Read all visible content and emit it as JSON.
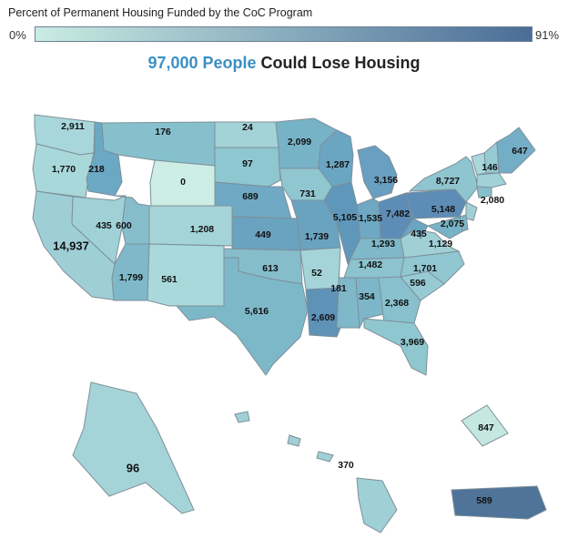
{
  "legend": {
    "title": "Percent of Permanent Housing Funded by the CoC Program",
    "min_label": "0%",
    "max_label": "91%",
    "color_low": "#c9ece3",
    "color_high": "#4a6d97"
  },
  "headline": {
    "highlight": "97,000 People",
    "rest": " Could Lose Housing"
  },
  "states": [
    {
      "id": "WA",
      "label": "2,911",
      "color": "#a7d7da"
    },
    {
      "id": "OR",
      "label": "1,770",
      "color": "#a9d8da"
    },
    {
      "id": "CA",
      "label": "14,937",
      "color": "#9fcfd6"
    },
    {
      "id": "ID",
      "label": "218",
      "color": "#6aa8c3"
    },
    {
      "id": "NV",
      "label": "435",
      "color": "#9fd1d6"
    },
    {
      "id": "UT",
      "label": "600",
      "color": "#86bdcb"
    },
    {
      "id": "AZ",
      "label": "1,799",
      "color": "#7fb9c9"
    },
    {
      "id": "MT",
      "label": "176",
      "color": "#86c0cd"
    },
    {
      "id": "WY",
      "label": "0",
      "color": "#cdeee5"
    },
    {
      "id": "CO",
      "label": "1,208",
      "color": "#a4d4d8"
    },
    {
      "id": "NM",
      "label": "561",
      "color": "#a9d9da"
    },
    {
      "id": "ND",
      "label": "24",
      "color": "#a3d3d7"
    },
    {
      "id": "SD",
      "label": "97",
      "color": "#8ec7d0"
    },
    {
      "id": "NE",
      "label": "689",
      "color": "#6fa9c3"
    },
    {
      "id": "KS",
      "label": "449",
      "color": "#6aa3c0"
    },
    {
      "id": "OK",
      "label": "613",
      "color": "#86bdcb"
    },
    {
      "id": "TX",
      "label": "5,616",
      "color": "#7db8c9"
    },
    {
      "id": "MN",
      "label": "2,099",
      "color": "#77b3c7"
    },
    {
      "id": "IA",
      "label": "731",
      "color": "#90c6d0"
    },
    {
      "id": "MO",
      "label": "1,739",
      "color": "#6aa3c0"
    },
    {
      "id": "AR",
      "label": "52",
      "color": "#a4d4d8"
    },
    {
      "id": "LA",
      "label": "2,609",
      "color": "#5e92b7"
    },
    {
      "id": "WI",
      "label": "1,287",
      "color": "#6aa6c2"
    },
    {
      "id": "IL",
      "label": "5,105",
      "color": "#5e97ba"
    },
    {
      "id": "MI",
      "label": "3,156",
      "color": "#699fc0"
    },
    {
      "id": "IN",
      "label": "1,535",
      "color": "#6ea8c3"
    },
    {
      "id": "OH",
      "label": "7,482",
      "color": "#5d8db6"
    },
    {
      "id": "KY",
      "label": "1,293",
      "color": "#7fb8c9"
    },
    {
      "id": "TN",
      "label": "1,482",
      "color": "#8cc3ce"
    },
    {
      "id": "MS",
      "label": "181",
      "color": "#7fb8c9"
    },
    {
      "id": "AL",
      "label": "354",
      "color": "#7db6c8"
    },
    {
      "id": "GA",
      "label": "2,368",
      "color": "#88c0cd"
    },
    {
      "id": "FL",
      "label": "3,969",
      "color": "#8fc7d0"
    },
    {
      "id": "SC",
      "label": "596",
      "color": "#96cbd3"
    },
    {
      "id": "NC",
      "label": "1,701",
      "color": "#90c7d1"
    },
    {
      "id": "VA",
      "label": "1,129",
      "color": "#a0d0d6"
    },
    {
      "id": "WV",
      "label": "435",
      "color": "#6aa5c1"
    },
    {
      "id": "PA",
      "label": "5,148",
      "color": "#5d8db6"
    },
    {
      "id": "NY",
      "label": "8,727",
      "color": "#8ec5cf"
    },
    {
      "id": "MD",
      "label": "2,075",
      "color": "#77b3c7"
    },
    {
      "id": "NJ",
      "label": "2,080",
      "color": "#9fd0d6"
    },
    {
      "id": "VT",
      "label": "146",
      "color": "#a9d9da"
    },
    {
      "id": "NH",
      "label": "",
      "color": "#96cbd3"
    },
    {
      "id": "MA",
      "label": "",
      "color": "#a0d2d7"
    },
    {
      "id": "CT",
      "label": "",
      "color": "#86bfcc"
    },
    {
      "id": "DE",
      "label": "",
      "color": "#7db6c8"
    },
    {
      "id": "ME",
      "label": "647",
      "color": "#74aec6"
    },
    {
      "id": "AK",
      "label": "96",
      "color": "#a4d4d8"
    },
    {
      "id": "HI",
      "label": "370",
      "color": "#9fd0d6"
    },
    {
      "id": "DC",
      "label": "847",
      "color": "#c4e8e0"
    },
    {
      "id": "PR",
      "label": "589",
      "color": "#4f7399"
    }
  ]
}
